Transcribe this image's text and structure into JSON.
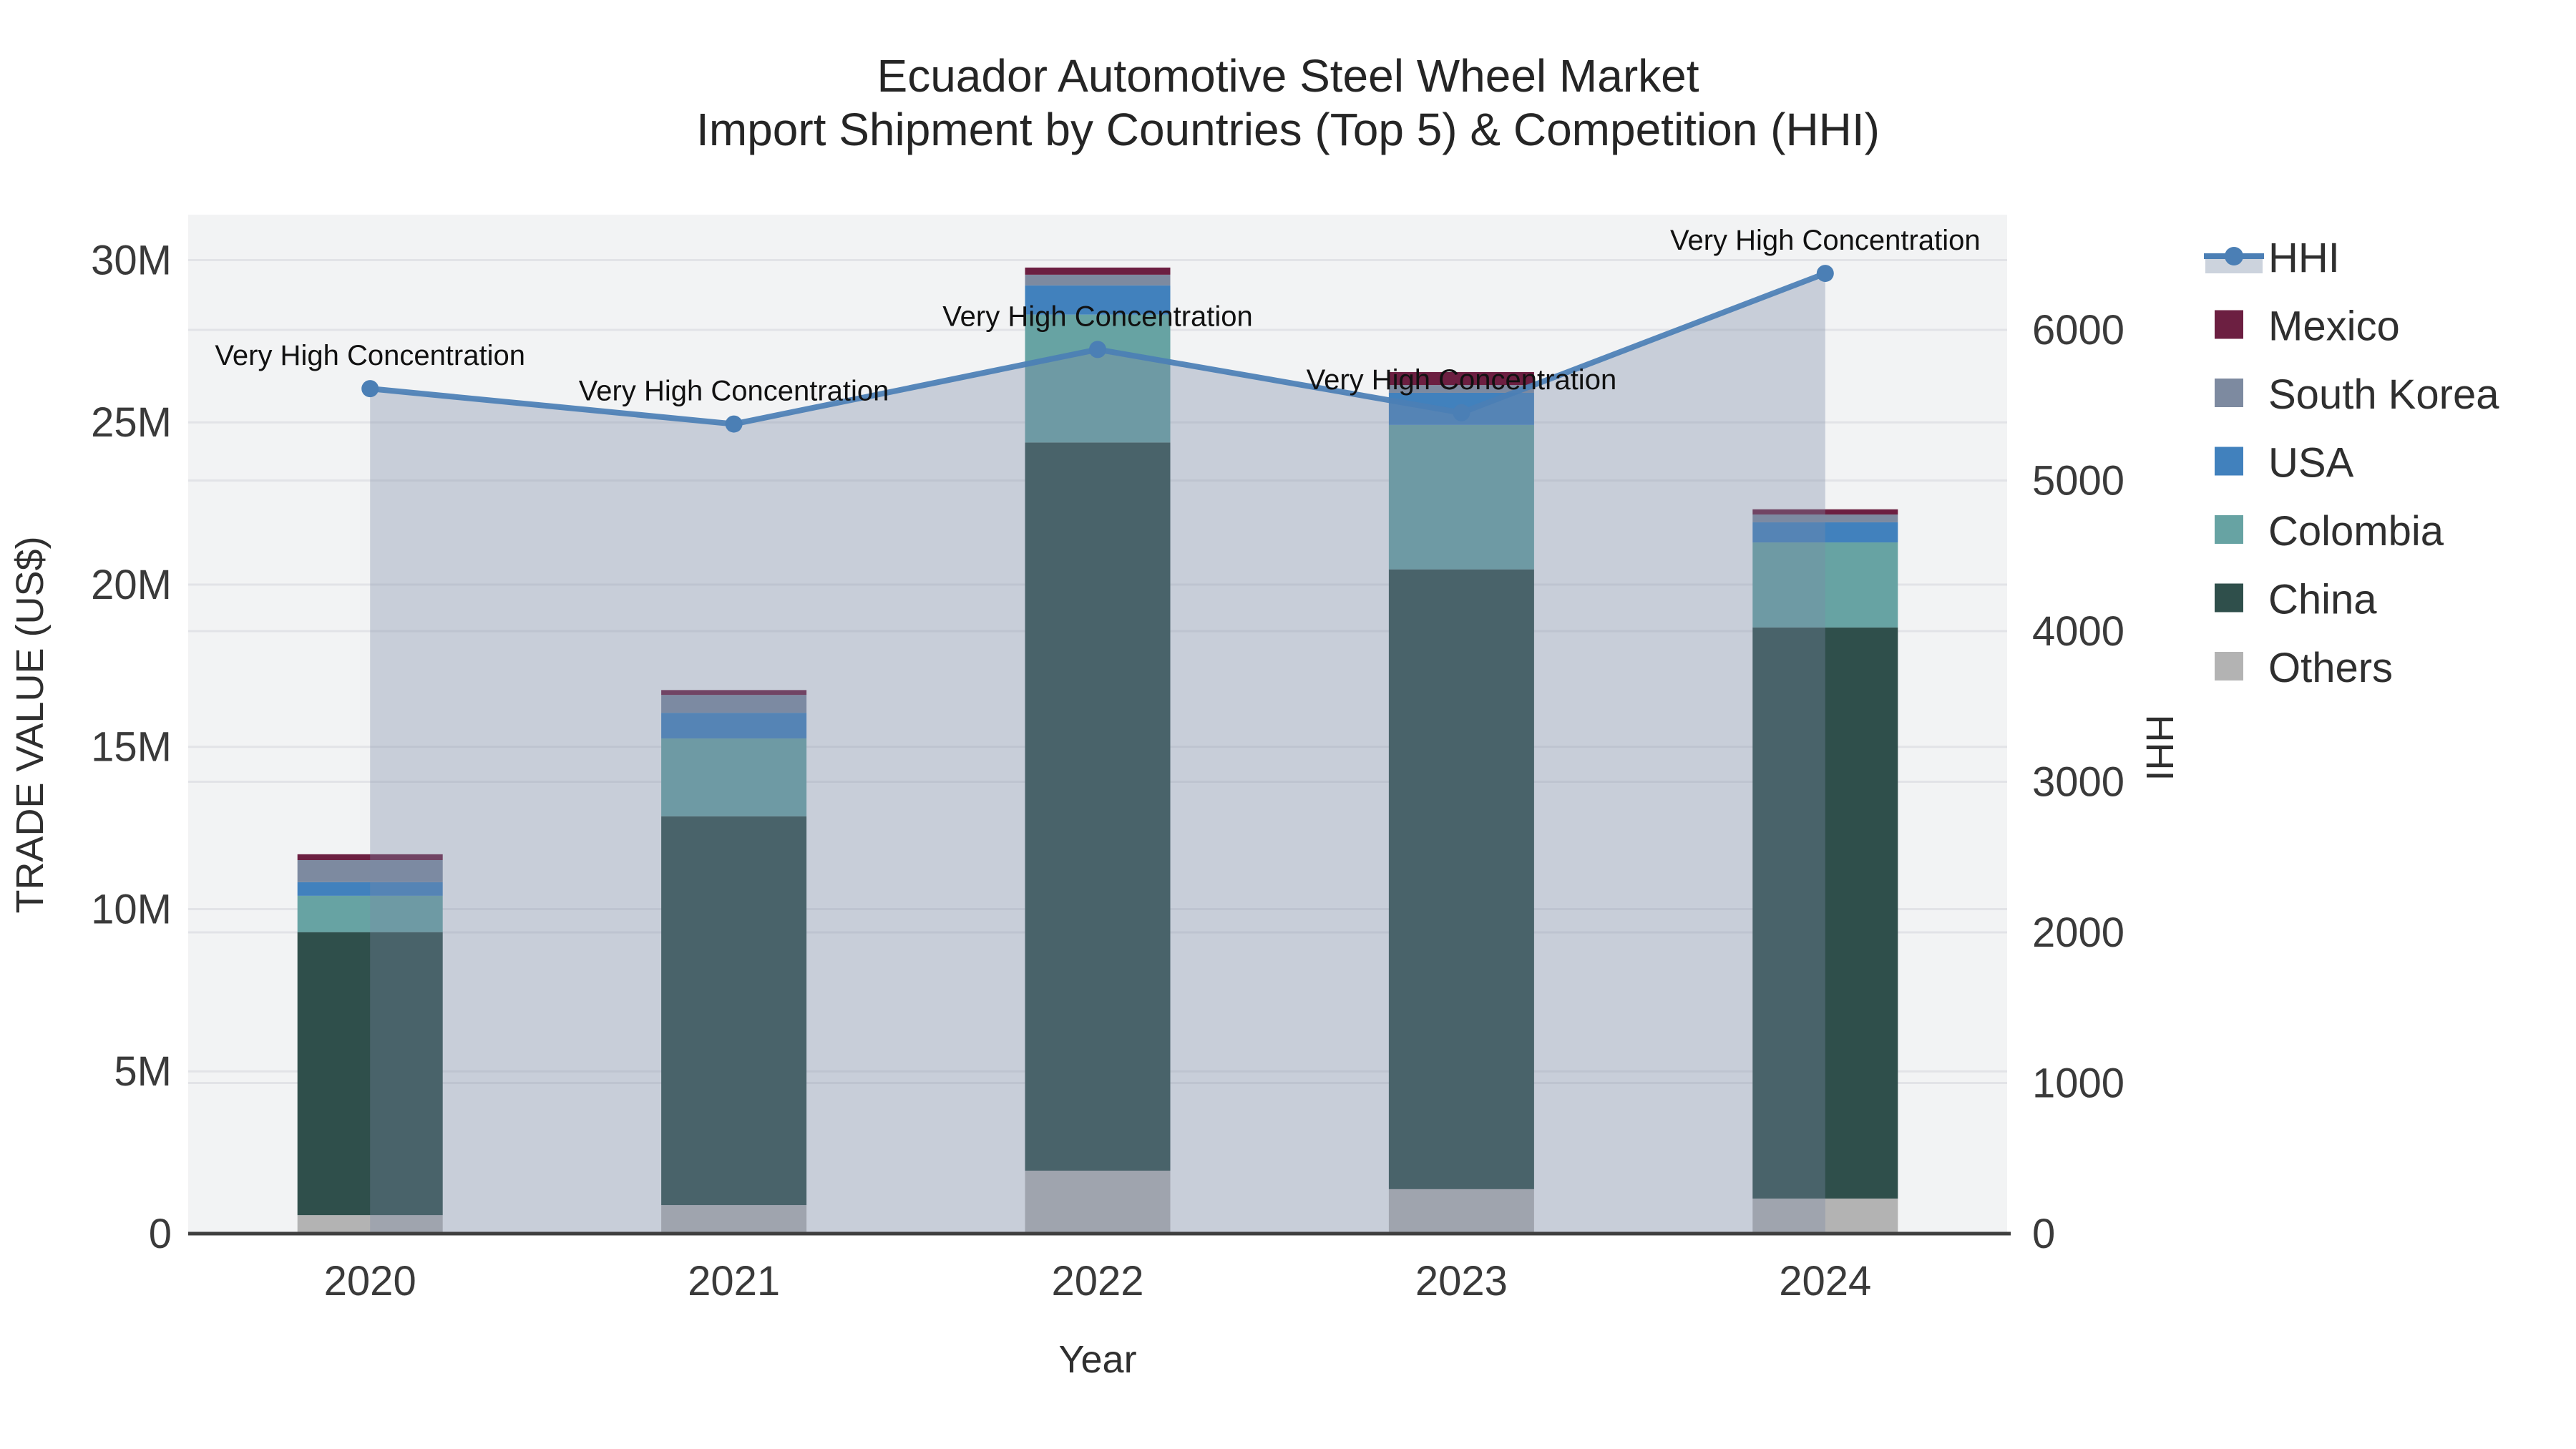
{
  "title": {
    "line1": "Ecuador Automotive Steel Wheel Market",
    "line2": "Import Shipment by Countries (Top 5) & Competition (HHI)"
  },
  "annotation_label": "Very High Concentration",
  "legend": {
    "items": [
      {
        "label": "HHI",
        "type": "line",
        "color": "#4b7fb5",
        "fill": "#ccd3dd"
      },
      {
        "label": "Mexico",
        "type": "bar",
        "color": "#6c1f41"
      },
      {
        "label": "South Korea",
        "type": "bar",
        "color": "#7d8aa0"
      },
      {
        "label": "USA",
        "type": "bar",
        "color": "#4181bd"
      },
      {
        "label": "Colombia",
        "type": "bar",
        "color": "#67a3a3"
      },
      {
        "label": "China",
        "type": "bar",
        "color": "#2f4f4b"
      },
      {
        "label": "Others",
        "type": "bar",
        "color": "#b3b3b3"
      }
    ]
  },
  "chart_data": {
    "type": "bar",
    "subtype": "stacked bars with line overlay on secondary axis",
    "categories": [
      "2020",
      "2021",
      "2022",
      "2023",
      "2024"
    ],
    "bar_unit": "million US$",
    "series": [
      {
        "name": "Others",
        "color": "#b3b3b3",
        "values": [
          0.57,
          0.88,
          1.94,
          1.37,
          1.08
        ]
      },
      {
        "name": "China",
        "color": "#2f4f4b",
        "values": [
          8.72,
          11.98,
          22.44,
          19.1,
          17.6
        ]
      },
      {
        "name": "Colombia",
        "color": "#67a3a3",
        "values": [
          1.12,
          2.4,
          3.94,
          4.45,
          2.62
        ]
      },
      {
        "name": "USA",
        "color": "#4181bd",
        "values": [
          0.42,
          0.79,
          0.9,
          0.99,
          0.62
        ]
      },
      {
        "name": "South Korea",
        "color": "#7d8aa0",
        "values": [
          0.68,
          0.55,
          0.33,
          0.24,
          0.24
        ]
      },
      {
        "name": "Mexico",
        "color": "#6c1f41",
        "values": [
          0.18,
          0.15,
          0.22,
          0.4,
          0.16
        ]
      }
    ],
    "stack_totals": [
      11.69,
      16.75,
      29.77,
      26.55,
      22.32
    ],
    "line_series": {
      "name": "HHI",
      "color": "#4b7fb5",
      "area_fill": "rgba(124,137,167,0.35)",
      "yaxis": "right",
      "values": [
        5610,
        5375,
        5870,
        5450,
        6375
      ],
      "point_annotations": [
        "Very High Concentration",
        "Very High Concentration",
        "Very High Concentration",
        "Very High Concentration",
        "Very High Concentration"
      ]
    },
    "y_left": {
      "label": "TRADE VALUE (US$)",
      "ylim": [
        0,
        31.4
      ],
      "tick_values": [
        0,
        5,
        10,
        15,
        20,
        25,
        30
      ],
      "tick_labels": [
        "0",
        "5M",
        "10M",
        "15M",
        "20M",
        "25M",
        "30M"
      ]
    },
    "y_right": {
      "label": "HHI",
      "ylim": [
        0,
        6765
      ],
      "tick_values": [
        0,
        1000,
        2000,
        3000,
        4000,
        5000,
        6000
      ],
      "tick_labels": [
        "0",
        "1000",
        "2000",
        "3000",
        "4000",
        "5000",
        "6000"
      ]
    },
    "x": {
      "label": "Year"
    },
    "grid": true,
    "legend_position": "right"
  },
  "style": {
    "plot_bg": "#f2f3f4",
    "gridline": "#e2e3e7",
    "axis_line": "#3f3f3f"
  }
}
